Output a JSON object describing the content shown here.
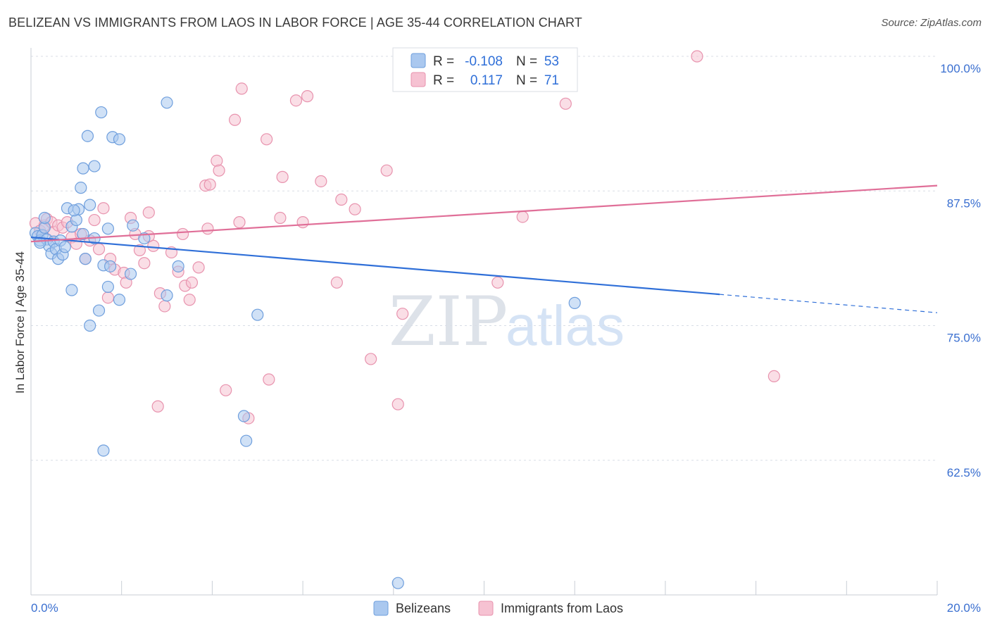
{
  "header": {
    "title": "BELIZEAN VS IMMIGRANTS FROM LAOS IN LABOR FORCE | AGE 35-44 CORRELATION CHART",
    "source": "Source: ZipAtlas.com"
  },
  "watermark": {
    "zip": "ZIP",
    "atlas": "atlas"
  },
  "legend": {
    "r_label": "R =",
    "n_label": "N =",
    "rows": [
      {
        "r": "-0.108",
        "n": "53",
        "color": "#aac8ef"
      },
      {
        "r": "0.117",
        "n": "71",
        "color": "#f6b6c8"
      }
    ]
  },
  "colors": {
    "blue_fill": "#aac8ef",
    "blue_stroke": "#6f9fdd",
    "blue_line": "#2f6fd8",
    "pink_fill": "#f6c2d2",
    "pink_stroke": "#e893ae",
    "pink_line": "#e06f98",
    "grid": "#d8dde6",
    "tick_label": "#3a6fd0"
  },
  "chart_data": {
    "type": "scatter",
    "title": "BELIZEAN VS IMMIGRANTS FROM LAOS IN LABOR FORCE | AGE 35-44 CORRELATION CHART",
    "ylabel": "In Labor Force | Age 35-44",
    "x_unit": "%",
    "xlim": [
      0,
      20
    ],
    "ylim": [
      50,
      100
    ],
    "x_tick_labels": [
      "0.0%",
      "20.0%"
    ],
    "y_ticks": [
      62.5,
      75.0,
      87.5,
      100.0
    ],
    "y_tick_labels": [
      "62.5%",
      "75.0%",
      "87.5%",
      "100.0%"
    ],
    "grid": true,
    "legend_position": "top-center",
    "series": [
      {
        "name": "Belizeans",
        "r": -0.108,
        "n": 53,
        "trend": {
          "x0": 0,
          "y0": 83.2,
          "x1": 15.2,
          "y1": 77.9,
          "dashed_to_x": 20,
          "dashed_to_y": 76.2
        },
        "points": [
          [
            0.1,
            83.6
          ],
          [
            0.15,
            83.3
          ],
          [
            0.2,
            82.9
          ],
          [
            0.25,
            83.4
          ],
          [
            0.3,
            84.1
          ],
          [
            0.35,
            83.0
          ],
          [
            0.4,
            82.4
          ],
          [
            0.45,
            81.7
          ],
          [
            0.5,
            82.8
          ],
          [
            0.55,
            82.1
          ],
          [
            0.6,
            81.2
          ],
          [
            0.65,
            82.9
          ],
          [
            0.7,
            81.6
          ],
          [
            0.75,
            82.3
          ],
          [
            0.3,
            85.0
          ],
          [
            0.9,
            84.2
          ],
          [
            0.8,
            85.9
          ],
          [
            1.0,
            84.8
          ],
          [
            1.05,
            85.8
          ],
          [
            0.95,
            85.7
          ],
          [
            1.1,
            87.8
          ],
          [
            1.15,
            89.6
          ],
          [
            1.25,
            92.6
          ],
          [
            1.4,
            89.8
          ],
          [
            1.55,
            94.8
          ],
          [
            1.8,
            92.5
          ],
          [
            1.95,
            92.3
          ],
          [
            1.3,
            86.2
          ],
          [
            1.7,
            84.0
          ],
          [
            1.4,
            83.1
          ],
          [
            1.15,
            83.5
          ],
          [
            1.2,
            81.2
          ],
          [
            1.6,
            80.6
          ],
          [
            1.75,
            80.5
          ],
          [
            1.7,
            78.6
          ],
          [
            2.25,
            84.3
          ],
          [
            2.5,
            83.1
          ],
          [
            2.2,
            79.8
          ],
          [
            1.95,
            77.4
          ],
          [
            1.5,
            76.4
          ],
          [
            1.3,
            75.0
          ],
          [
            0.9,
            78.3
          ],
          [
            3.0,
            95.7
          ],
          [
            3.25,
            80.5
          ],
          [
            3.0,
            77.8
          ],
          [
            5.0,
            76.0
          ],
          [
            4.7,
            66.6
          ],
          [
            4.75,
            64.3
          ],
          [
            1.6,
            63.4
          ],
          [
            8.6,
            100.0
          ],
          [
            12.0,
            77.1
          ],
          [
            8.1,
            51.1
          ],
          [
            0.2,
            82.7
          ]
        ]
      },
      {
        "name": "Immigrants from Laos",
        "r": 0.117,
        "n": 71,
        "trend": {
          "x0": 0,
          "y0": 82.8,
          "x1": 20,
          "y1": 88.0
        },
        "points": [
          [
            0.1,
            84.5
          ],
          [
            0.2,
            83.8
          ],
          [
            0.3,
            84.3
          ],
          [
            0.35,
            84.9
          ],
          [
            0.45,
            84.6
          ],
          [
            0.5,
            83.7
          ],
          [
            0.6,
            84.3
          ],
          [
            0.7,
            84.1
          ],
          [
            0.8,
            84.6
          ],
          [
            0.9,
            83.2
          ],
          [
            1.0,
            82.6
          ],
          [
            1.1,
            83.5
          ],
          [
            1.2,
            81.2
          ],
          [
            1.3,
            82.9
          ],
          [
            1.4,
            84.8
          ],
          [
            1.5,
            82.1
          ],
          [
            1.6,
            85.9
          ],
          [
            1.7,
            77.6
          ],
          [
            1.75,
            81.2
          ],
          [
            1.85,
            80.2
          ],
          [
            2.05,
            79.9
          ],
          [
            2.1,
            79.0
          ],
          [
            2.2,
            85.0
          ],
          [
            2.3,
            83.5
          ],
          [
            2.4,
            82.0
          ],
          [
            2.5,
            80.8
          ],
          [
            2.6,
            85.5
          ],
          [
            2.7,
            82.4
          ],
          [
            2.85,
            78.0
          ],
          [
            2.95,
            76.8
          ],
          [
            3.1,
            81.8
          ],
          [
            3.25,
            80.0
          ],
          [
            3.4,
            78.7
          ],
          [
            3.5,
            77.4
          ],
          [
            3.55,
            79.0
          ],
          [
            3.7,
            80.4
          ],
          [
            3.35,
            83.5
          ],
          [
            3.85,
            88.0
          ],
          [
            3.95,
            88.1
          ],
          [
            4.1,
            90.3
          ],
          [
            4.15,
            89.4
          ],
          [
            4.3,
            69.0
          ],
          [
            4.5,
            94.1
          ],
          [
            4.6,
            84.6
          ],
          [
            4.65,
            97.0
          ],
          [
            4.8,
            66.4
          ],
          [
            5.2,
            92.3
          ],
          [
            5.25,
            70.0
          ],
          [
            5.5,
            85.0
          ],
          [
            5.55,
            88.8
          ],
          [
            5.85,
            95.9
          ],
          [
            6.0,
            84.6
          ],
          [
            6.1,
            96.3
          ],
          [
            6.4,
            88.4
          ],
          [
            6.75,
            79.0
          ],
          [
            6.85,
            86.7
          ],
          [
            7.15,
            85.8
          ],
          [
            7.5,
            71.9
          ],
          [
            7.85,
            89.4
          ],
          [
            8.1,
            67.7
          ],
          [
            8.2,
            76.1
          ],
          [
            8.6,
            100.0
          ],
          [
            9.0,
            100.0
          ],
          [
            10.3,
            79.0
          ],
          [
            10.85,
            85.1
          ],
          [
            11.8,
            95.6
          ],
          [
            14.7,
            100.0
          ],
          [
            16.4,
            70.3
          ],
          [
            2.6,
            83.3
          ],
          [
            3.9,
            84.0
          ],
          [
            2.8,
            67.5
          ]
        ]
      }
    ]
  },
  "bottom_legend": {
    "items": [
      "Belizeans",
      "Immigrants from Laos"
    ]
  }
}
